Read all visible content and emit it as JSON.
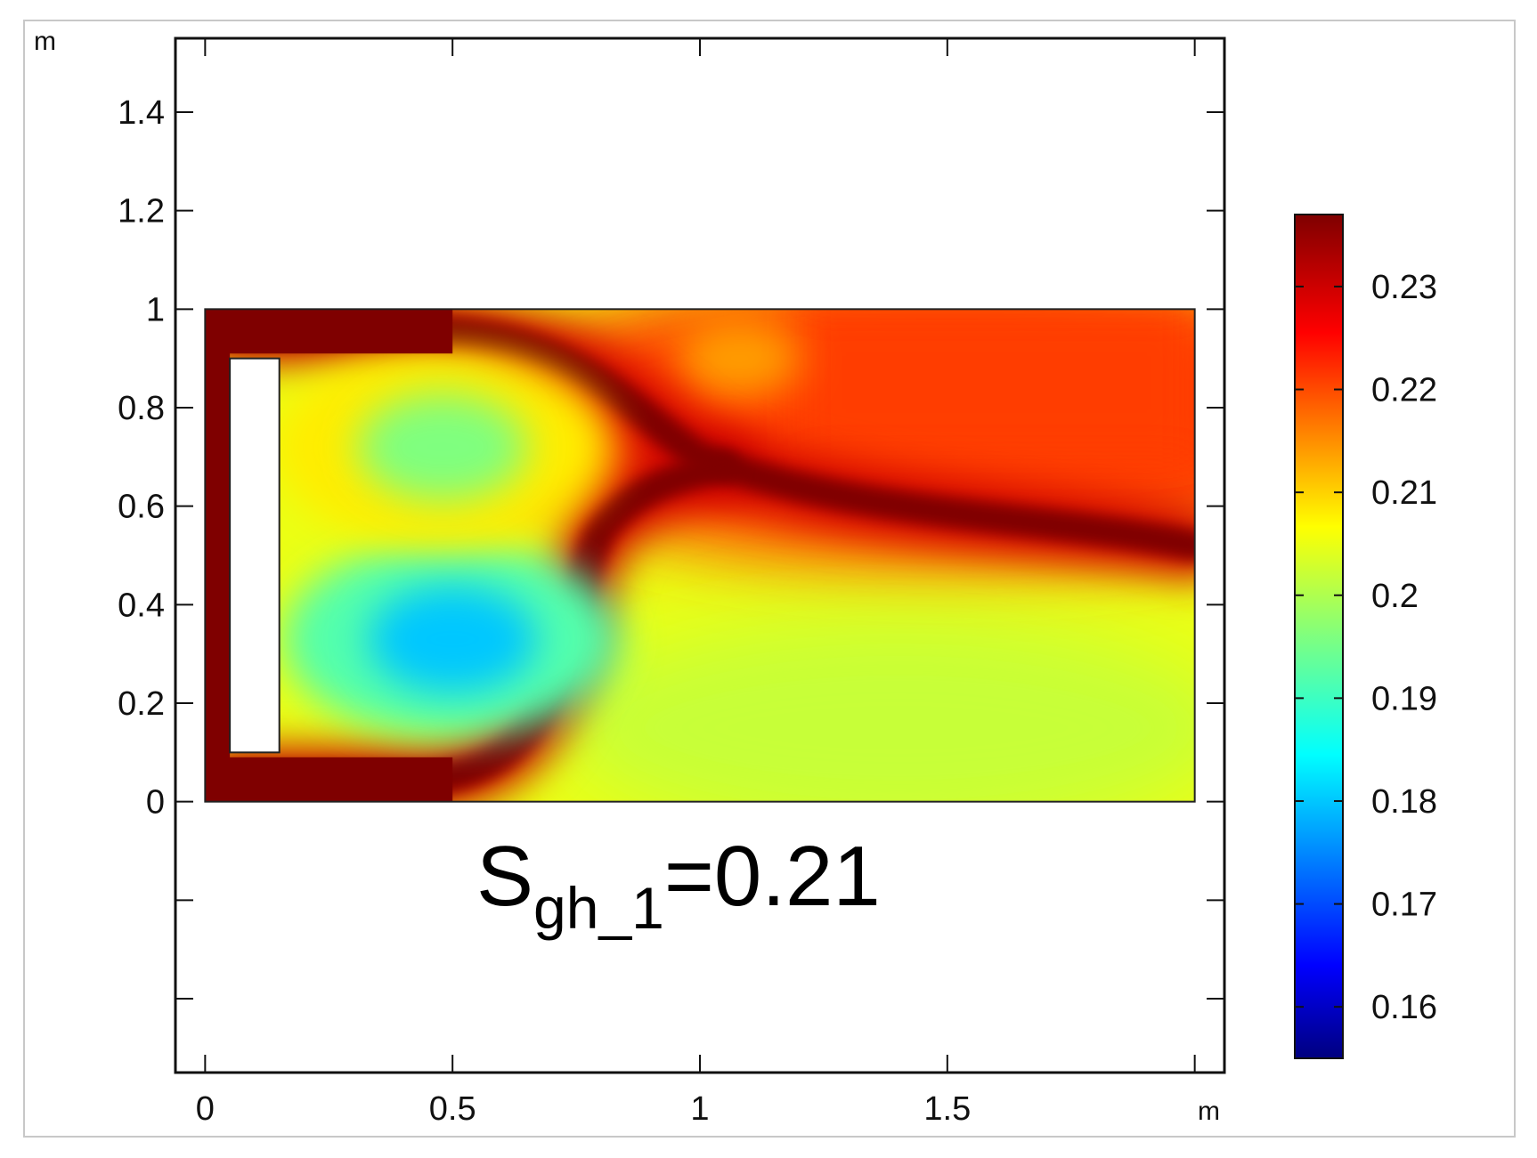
{
  "chart_data": {
    "type": "heatmap",
    "title": "",
    "annotation": {
      "base": "S",
      "subscript": "gh_1",
      "suffix": "=0.21"
    },
    "x_unit": "m",
    "y_unit": "m",
    "xlim": [
      -0.06,
      2.06
    ],
    "ylim": [
      -0.55,
      1.55
    ],
    "x_ticks": [
      0,
      0.5,
      1,
      1.5,
      2
    ],
    "x_tick_labels": [
      "0",
      "0.5",
      "1",
      "1.5",
      ""
    ],
    "y_ticks": [
      -0.4,
      -0.2,
      0,
      0.2,
      0.4,
      0.6,
      0.8,
      1,
      1.2,
      1.4
    ],
    "y_tick_labels": [
      "",
      "",
      "0",
      "0.2",
      "0.4",
      "0.6",
      "0.8",
      "1",
      "1.2",
      "1.4"
    ],
    "domain": {
      "x": [
        0,
        2
      ],
      "y": [
        0,
        1
      ]
    },
    "obstacle": {
      "x": [
        0.05,
        0.15
      ],
      "y": [
        0.1,
        0.9
      ]
    },
    "colorbar": {
      "range": [
        0.155,
        0.237
      ],
      "ticks": [
        0.16,
        0.17,
        0.18,
        0.19,
        0.2,
        0.21,
        0.22,
        0.23
      ],
      "tick_labels": [
        "0.16",
        "0.17",
        "0.18",
        "0.19",
        "0.2",
        "0.21",
        "0.22",
        "0.23"
      ],
      "colormap": "jet"
    },
    "field_features": [
      {
        "kind": "background",
        "value": 0.205
      },
      {
        "kind": "wall_band",
        "x": [
          0,
          0.05
        ],
        "y": [
          0,
          1
        ],
        "value": 0.237
      },
      {
        "kind": "wall_band",
        "x": [
          0,
          0.5
        ],
        "y": [
          0.91,
          1
        ],
        "value": 0.237
      },
      {
        "kind": "wall_band",
        "x": [
          0,
          0.5
        ],
        "y": [
          0,
          0.09
        ],
        "value": 0.237
      },
      {
        "kind": "eddy",
        "center": [
          0.5,
          0.33
        ],
        "value": 0.18
      },
      {
        "kind": "eddy",
        "center": [
          0.48,
          0.72
        ],
        "value": 0.196
      },
      {
        "kind": "wake",
        "center": [
          1.5,
          0.78
        ],
        "value": 0.221
      },
      {
        "kind": "low_zone",
        "center": [
          1.4,
          0.15
        ],
        "value": 0.202
      }
    ]
  }
}
